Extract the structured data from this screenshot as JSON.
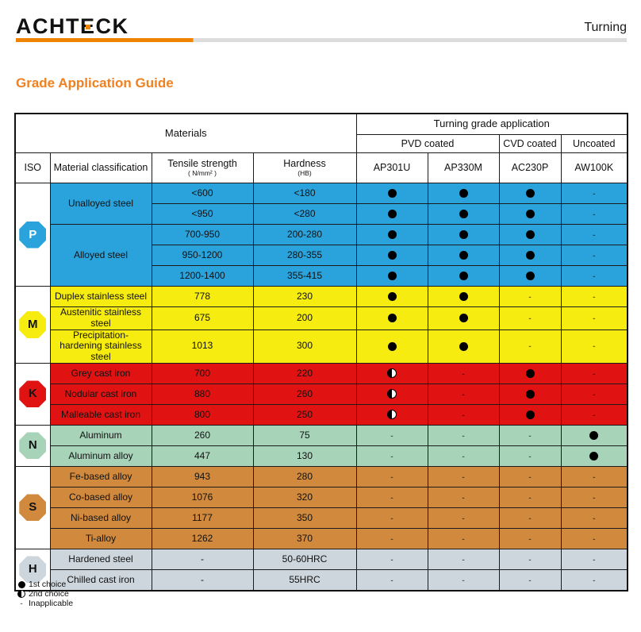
{
  "brand": {
    "logo_part1": "ACHT",
    "logo_accent": "E",
    "logo_part2": "CK",
    "page_label": "Turning"
  },
  "title": "Grade Application Guide",
  "colors": {
    "accent_orange": "#f08300",
    "heading_orange": "#ee8122",
    "p_blue": "#2aa3dc",
    "m_yellow": "#f6ec0f",
    "k_red": "#e11212",
    "n_green": "#a7d3b9",
    "s_brown": "#d0893d",
    "h_gray": "#cdd6dd"
  },
  "table": {
    "header": {
      "materials": "Materials",
      "application": "Turning grade application",
      "pvd": "PVD coated",
      "cvd": "CVD coated",
      "uncoated": "Uncoated",
      "iso": "ISO",
      "classification": "Material classification",
      "tensile": "Tensile strength",
      "tensile_unit": "( N/mm² )",
      "hardness": "Hardness",
      "hardness_unit": "(HB)",
      "grades": [
        "AP301U",
        "AP330M",
        "AC230P",
        "AW100K"
      ]
    },
    "sections": [
      {
        "iso": "P",
        "rows": [
          {
            "material": "Unalloyed steel",
            "tensile": "<600",
            "hardness": "<180",
            "marks": [
              "dot",
              "dot",
              "dot",
              "na"
            ]
          },
          {
            "tensile": "<950",
            "hardness": "<280",
            "marks": [
              "dot",
              "dot",
              "dot",
              "na"
            ]
          },
          {
            "material": "Alloyed steel",
            "tensile": "700-950",
            "hardness": "200-280",
            "marks": [
              "dot",
              "dot",
              "dot",
              "na"
            ]
          },
          {
            "tensile": "950-1200",
            "hardness": "280-355",
            "marks": [
              "dot",
              "dot",
              "dot",
              "na"
            ]
          },
          {
            "tensile": "1200-1400",
            "hardness": "355-415",
            "marks": [
              "dot",
              "dot",
              "dot",
              "na"
            ]
          }
        ]
      },
      {
        "iso": "M",
        "rows": [
          {
            "material": "Duplex stainless steel",
            "tensile": "778",
            "hardness": "230",
            "marks": [
              "dot",
              "dot",
              "na",
              "na"
            ]
          },
          {
            "material": "Austenitic stainless steel",
            "tensile": "675",
            "hardness": "200",
            "marks": [
              "dot",
              "dot",
              "na",
              "na"
            ]
          },
          {
            "material": "Precipitation-hardening stainless steel",
            "tensile": "1013",
            "hardness": "300",
            "marks": [
              "dot",
              "dot",
              "na",
              "na"
            ]
          }
        ]
      },
      {
        "iso": "K",
        "rows": [
          {
            "material": "Grey cast iron",
            "tensile": "700",
            "hardness": "220",
            "marks": [
              "half",
              "na",
              "dot",
              "na"
            ]
          },
          {
            "material": "Nodular cast iron",
            "tensile": "880",
            "hardness": "260",
            "marks": [
              "half",
              "na",
              "dot",
              "na"
            ]
          },
          {
            "material": "Malleable cast iron",
            "tensile": "800",
            "hardness": "250",
            "marks": [
              "half",
              "na",
              "dot",
              "na"
            ]
          }
        ]
      },
      {
        "iso": "N",
        "rows": [
          {
            "material": "Aluminum",
            "tensile": "260",
            "hardness": "75",
            "marks": [
              "na",
              "na",
              "na",
              "dot"
            ]
          },
          {
            "material": "Aluminum alloy",
            "tensile": "447",
            "hardness": "130",
            "marks": [
              "na",
              "na",
              "na",
              "dot"
            ]
          }
        ]
      },
      {
        "iso": "S",
        "rows": [
          {
            "material": "Fe-based alloy",
            "tensile": "943",
            "hardness": "280",
            "marks": [
              "na",
              "na",
              "na",
              "na"
            ]
          },
          {
            "material": "Co-based alloy",
            "tensile": "1076",
            "hardness": "320",
            "marks": [
              "na",
              "na",
              "na",
              "na"
            ]
          },
          {
            "material": "Ni-based alloy",
            "tensile": "1177",
            "hardness": "350",
            "marks": [
              "na",
              "na",
              "na",
              "na"
            ]
          },
          {
            "material": "Ti-alloy",
            "tensile": "1262",
            "hardness": "370",
            "marks": [
              "na",
              "na",
              "na",
              "na"
            ]
          }
        ]
      },
      {
        "iso": "H",
        "rows": [
          {
            "material": "Hardened steel",
            "tensile": "-",
            "hardness": "50-60HRC",
            "marks": [
              "na",
              "na",
              "na",
              "na"
            ]
          },
          {
            "material": "Chilled cast iron",
            "tensile": "-",
            "hardness": "55HRC",
            "marks": [
              "na",
              "na",
              "na",
              "na"
            ]
          }
        ]
      }
    ]
  },
  "legend": {
    "items": [
      {
        "mark": "dot",
        "label": "1st choice"
      },
      {
        "mark": "half",
        "label": "2nd choice"
      },
      {
        "mark": "na",
        "label": "Inapplicable"
      }
    ]
  }
}
